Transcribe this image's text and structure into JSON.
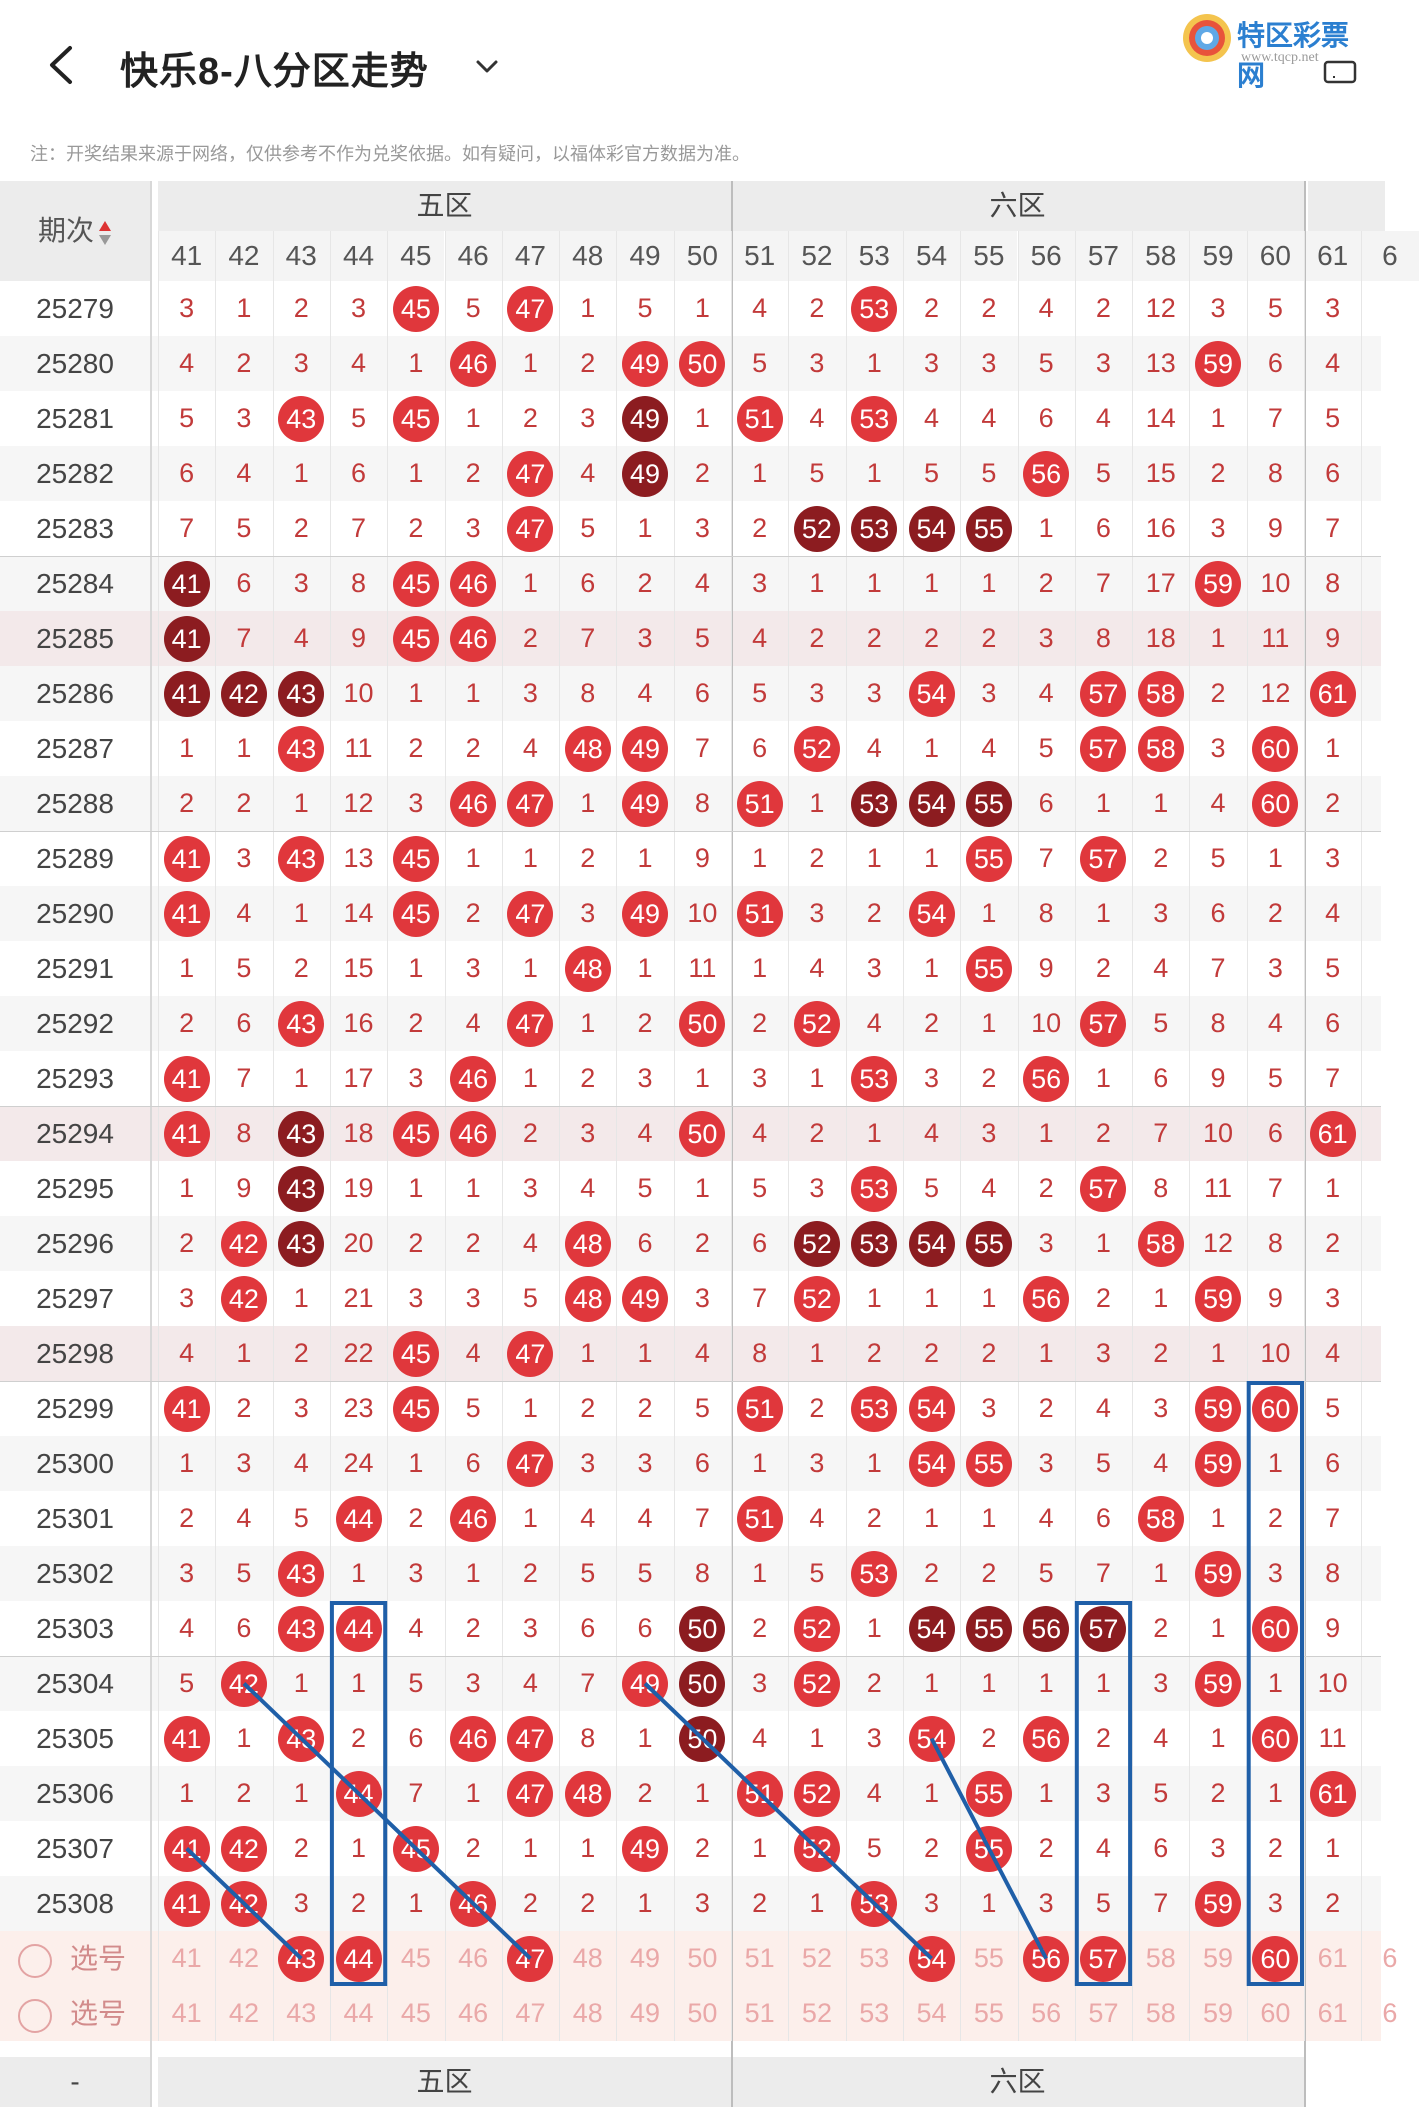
{
  "header": {
    "title": "快乐8-八分区走势",
    "logo_text": "特区彩票网",
    "logo_url": "www.tqcp.net"
  },
  "note": "注：开奖结果来源于网络，仅供参考不作为兑奖依据。如有疑问，以福体彩官方数据为准。",
  "table": {
    "period_header": "期次",
    "zones": [
      "五区",
      "六区"
    ],
    "columns": [
      "41",
      "42",
      "43",
      "44",
      "45",
      "46",
      "47",
      "48",
      "49",
      "50",
      "51",
      "52",
      "53",
      "54",
      "55",
      "56",
      "57",
      "58",
      "59",
      "60",
      "61",
      "6"
    ],
    "rows": [
      {
        "period": "25279",
        "cells": [
          "3",
          "1",
          "2",
          "3",
          "45",
          "5",
          "47",
          "1",
          "5",
          "1",
          "4",
          "2",
          "53",
          "2",
          "2",
          "4",
          "2",
          "12",
          "3",
          "5",
          "3",
          ""
        ]
      },
      {
        "period": "25280",
        "cells": [
          "4",
          "2",
          "3",
          "4",
          "1",
          "46",
          "1",
          "2",
          "49",
          "50",
          "5",
          "3",
          "1",
          "3",
          "3",
          "5",
          "3",
          "13",
          "59",
          "6",
          "4",
          ""
        ]
      },
      {
        "period": "25281",
        "cells": [
          "5",
          "3",
          "43",
          "5",
          "45",
          "1",
          "2",
          "3",
          "49",
          "1",
          "51",
          "4",
          "53",
          "4",
          "4",
          "6",
          "4",
          "14",
          "1",
          "7",
          "5",
          ""
        ]
      },
      {
        "period": "25282",
        "cells": [
          "6",
          "4",
          "1",
          "6",
          "1",
          "2",
          "47",
          "4",
          "49",
          "2",
          "1",
          "5",
          "1",
          "5",
          "5",
          "56",
          "5",
          "15",
          "2",
          "8",
          "6",
          ""
        ]
      },
      {
        "period": "25283",
        "cells": [
          "7",
          "5",
          "2",
          "7",
          "2",
          "3",
          "47",
          "5",
          "1",
          "3",
          "2",
          "52",
          "53",
          "54",
          "55",
          "1",
          "6",
          "16",
          "3",
          "9",
          "7",
          ""
        ]
      },
      {
        "period": "25284",
        "cells": [
          "41",
          "6",
          "3",
          "8",
          "45",
          "46",
          "1",
          "6",
          "2",
          "4",
          "3",
          "1",
          "1",
          "1",
          "1",
          "2",
          "7",
          "17",
          "59",
          "10",
          "8",
          ""
        ]
      },
      {
        "period": "25285",
        "cells": [
          "41",
          "7",
          "4",
          "9",
          "45",
          "46",
          "2",
          "7",
          "3",
          "5",
          "4",
          "2",
          "2",
          "2",
          "2",
          "3",
          "8",
          "18",
          "1",
          "11",
          "9",
          ""
        ]
      },
      {
        "period": "25286",
        "cells": [
          "41",
          "42",
          "43",
          "10",
          "1",
          "1",
          "3",
          "8",
          "4",
          "6",
          "5",
          "3",
          "3",
          "54",
          "3",
          "4",
          "57",
          "58",
          "2",
          "12",
          "61",
          ""
        ]
      },
      {
        "period": "25287",
        "cells": [
          "1",
          "1",
          "43",
          "11",
          "2",
          "2",
          "4",
          "48",
          "49",
          "7",
          "6",
          "52",
          "4",
          "1",
          "4",
          "5",
          "57",
          "58",
          "3",
          "60",
          "1",
          ""
        ]
      },
      {
        "period": "25288",
        "cells": [
          "2",
          "2",
          "1",
          "12",
          "3",
          "46",
          "47",
          "1",
          "49",
          "8",
          "51",
          "1",
          "53",
          "54",
          "55",
          "6",
          "1",
          "1",
          "4",
          "60",
          "2",
          ""
        ]
      },
      {
        "period": "25289",
        "cells": [
          "41",
          "3",
          "43",
          "13",
          "45",
          "1",
          "1",
          "2",
          "1",
          "9",
          "1",
          "2",
          "1",
          "1",
          "55",
          "7",
          "57",
          "2",
          "5",
          "1",
          "3",
          ""
        ]
      },
      {
        "period": "25290",
        "cells": [
          "41",
          "4",
          "1",
          "14",
          "45",
          "2",
          "47",
          "3",
          "49",
          "10",
          "51",
          "3",
          "2",
          "54",
          "1",
          "8",
          "1",
          "3",
          "6",
          "2",
          "4",
          ""
        ]
      },
      {
        "period": "25291",
        "cells": [
          "1",
          "5",
          "2",
          "15",
          "1",
          "3",
          "1",
          "48",
          "1",
          "11",
          "1",
          "4",
          "3",
          "1",
          "55",
          "9",
          "2",
          "4",
          "7",
          "3",
          "5",
          ""
        ]
      },
      {
        "period": "25292",
        "cells": [
          "2",
          "6",
          "43",
          "16",
          "2",
          "4",
          "47",
          "1",
          "2",
          "50",
          "2",
          "52",
          "4",
          "2",
          "1",
          "10",
          "57",
          "5",
          "8",
          "4",
          "6",
          ""
        ]
      },
      {
        "period": "25293",
        "cells": [
          "41",
          "7",
          "1",
          "17",
          "3",
          "46",
          "1",
          "2",
          "3",
          "1",
          "3",
          "1",
          "53",
          "3",
          "2",
          "56",
          "1",
          "6",
          "9",
          "5",
          "7",
          ""
        ]
      },
      {
        "period": "25294",
        "cells": [
          "41",
          "8",
          "43",
          "18",
          "45",
          "46",
          "2",
          "3",
          "4",
          "50",
          "4",
          "2",
          "1",
          "4",
          "3",
          "1",
          "2",
          "7",
          "10",
          "6",
          "61",
          ""
        ]
      },
      {
        "period": "25295",
        "cells": [
          "1",
          "9",
          "43",
          "19",
          "1",
          "1",
          "3",
          "4",
          "5",
          "1",
          "5",
          "3",
          "53",
          "5",
          "4",
          "2",
          "57",
          "8",
          "11",
          "7",
          "1",
          ""
        ]
      },
      {
        "period": "25296",
        "cells": [
          "2",
          "42",
          "43",
          "20",
          "2",
          "2",
          "4",
          "48",
          "6",
          "2",
          "6",
          "52",
          "53",
          "54",
          "55",
          "3",
          "1",
          "58",
          "12",
          "8",
          "2",
          ""
        ]
      },
      {
        "period": "25297",
        "cells": [
          "3",
          "42",
          "1",
          "21",
          "3",
          "3",
          "5",
          "48",
          "49",
          "3",
          "7",
          "52",
          "1",
          "1",
          "1",
          "56",
          "2",
          "1",
          "59",
          "9",
          "3",
          ""
        ]
      },
      {
        "period": "25298",
        "cells": [
          "4",
          "1",
          "2",
          "22",
          "45",
          "4",
          "47",
          "1",
          "1",
          "4",
          "8",
          "1",
          "2",
          "2",
          "2",
          "1",
          "3",
          "2",
          "1",
          "10",
          "4",
          ""
        ]
      },
      {
        "period": "25299",
        "cells": [
          "41",
          "2",
          "3",
          "23",
          "45",
          "5",
          "1",
          "2",
          "2",
          "5",
          "51",
          "2",
          "53",
          "54",
          "3",
          "2",
          "4",
          "3",
          "59",
          "60",
          "5",
          ""
        ]
      },
      {
        "period": "25300",
        "cells": [
          "1",
          "3",
          "4",
          "24",
          "1",
          "6",
          "47",
          "3",
          "3",
          "6",
          "1",
          "3",
          "1",
          "54",
          "55",
          "3",
          "5",
          "4",
          "59",
          "1",
          "6",
          ""
        ]
      },
      {
        "period": "25301",
        "cells": [
          "2",
          "4",
          "5",
          "44",
          "2",
          "46",
          "1",
          "4",
          "4",
          "7",
          "51",
          "4",
          "2",
          "1",
          "1",
          "4",
          "6",
          "58",
          "1",
          "2",
          "7",
          ""
        ]
      },
      {
        "period": "25302",
        "cells": [
          "3",
          "5",
          "43",
          "1",
          "3",
          "1",
          "2",
          "5",
          "5",
          "8",
          "1",
          "5",
          "53",
          "2",
          "2",
          "5",
          "7",
          "1",
          "59",
          "3",
          "8",
          ""
        ]
      },
      {
        "period": "25303",
        "cells": [
          "4",
          "6",
          "43",
          "44",
          "4",
          "2",
          "3",
          "6",
          "6",
          "50",
          "2",
          "52",
          "1",
          "54",
          "55",
          "56",
          "57",
          "2",
          "1",
          "60",
          "9",
          ""
        ]
      },
      {
        "period": "25304",
        "cells": [
          "5",
          "42",
          "1",
          "1",
          "5",
          "3",
          "4",
          "7",
          "49",
          "50",
          "3",
          "52",
          "2",
          "1",
          "1",
          "1",
          "1",
          "3",
          "59",
          "1",
          "10",
          ""
        ]
      },
      {
        "period": "25305",
        "cells": [
          "41",
          "1",
          "43",
          "2",
          "6",
          "46",
          "47",
          "8",
          "1",
          "50",
          "4",
          "1",
          "3",
          "54",
          "2",
          "56",
          "2",
          "4",
          "1",
          "60",
          "11",
          ""
        ]
      },
      {
        "period": "25306",
        "cells": [
          "1",
          "2",
          "1",
          "44",
          "7",
          "1",
          "47",
          "48",
          "2",
          "1",
          "51",
          "52",
          "4",
          "1",
          "55",
          "1",
          "3",
          "5",
          "2",
          "1",
          "61",
          ""
        ]
      },
      {
        "period": "25307",
        "cells": [
          "41",
          "42",
          "2",
          "1",
          "45",
          "2",
          "1",
          "1",
          "49",
          "2",
          "1",
          "52",
          "5",
          "2",
          "55",
          "2",
          "4",
          "6",
          "3",
          "2",
          "1",
          ""
        ]
      },
      {
        "period": "25308",
        "cells": [
          "41",
          "42",
          "3",
          "2",
          "1",
          "46",
          "2",
          "2",
          "1",
          "3",
          "2",
          "1",
          "53",
          "3",
          "1",
          "3",
          "5",
          "7",
          "59",
          "3",
          "2",
          ""
        ]
      }
    ],
    "select_rows": [
      {
        "label": "选号",
        "nums": [
          "41",
          "42",
          "43",
          "44",
          "45",
          "46",
          "47",
          "48",
          "49",
          "50",
          "51",
          "52",
          "53",
          "54",
          "55",
          "56",
          "57",
          "58",
          "59",
          "60",
          "61",
          "6"
        ],
        "balls": [
          "43",
          "44",
          "47",
          "54",
          "56",
          "57",
          "60"
        ]
      },
      {
        "label": "选号",
        "nums": [
          "41",
          "42",
          "43",
          "44",
          "45",
          "46",
          "47",
          "48",
          "49",
          "50",
          "51",
          "52",
          "53",
          "54",
          "55",
          "56",
          "57",
          "58",
          "59",
          "60",
          "61",
          "6"
        ],
        "balls": []
      }
    ],
    "footer_zones": [
      "五区",
      "六区"
    ],
    "footer_period": "-"
  },
  "colors": {
    "ball_red": "#e0373c",
    "ball_dark": "#8c1c20",
    "miss_text": "#c23a3a",
    "annotation_blue": "#1f5fa8"
  }
}
